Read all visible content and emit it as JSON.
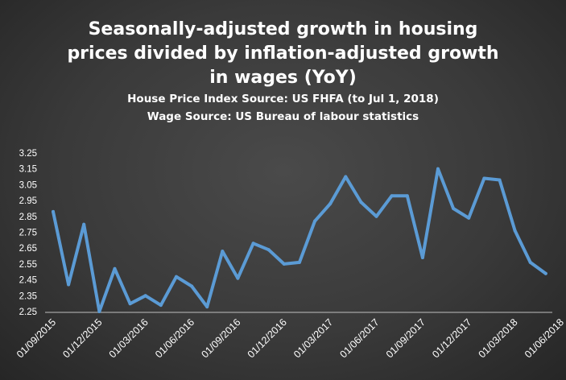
{
  "chart_data": {
    "type": "line",
    "title_lines": [
      "Seasonally-adjusted growth in housing",
      "prices divided by inflation-adjusted growth",
      "in wages (YoY)"
    ],
    "subtitle_lines": [
      "House Price Index Source: US FHFA (to Jul 1, 2018)",
      "Wage Source:  US Bureau of labour statistics"
    ],
    "xlabel": "",
    "ylabel": "",
    "ylim": [
      2.25,
      3.25
    ],
    "yticks": [
      "3.25",
      "3.15",
      "3.05",
      "2.95",
      "2.85",
      "2.75",
      "2.65",
      "2.55",
      "2.45",
      "2.35",
      "2.25"
    ],
    "xticks": [
      "01/09/2015",
      "01/12/2015",
      "01/03/2016",
      "01/06/2016",
      "01/09/2016",
      "01/12/2016",
      "01/03/2017",
      "01/06/2017",
      "01/09/2017",
      "01/12/2017",
      "01/03/2018",
      "01/06/2018"
    ],
    "grid": false,
    "legend": "none",
    "line_color": "#5b9bd5",
    "series": [
      {
        "values": [
          2.88,
          2.42,
          2.8,
          2.25,
          2.52,
          2.3,
          2.35,
          2.29,
          2.47,
          2.41,
          2.28,
          2.63,
          2.46,
          2.68,
          2.64,
          2.55,
          2.56,
          2.82,
          2.93,
          3.1,
          2.94,
          2.85,
          2.98,
          2.98,
          2.59,
          3.15,
          2.9,
          2.84,
          3.09,
          3.08,
          2.76,
          2.56,
          2.49
        ]
      }
    ]
  }
}
